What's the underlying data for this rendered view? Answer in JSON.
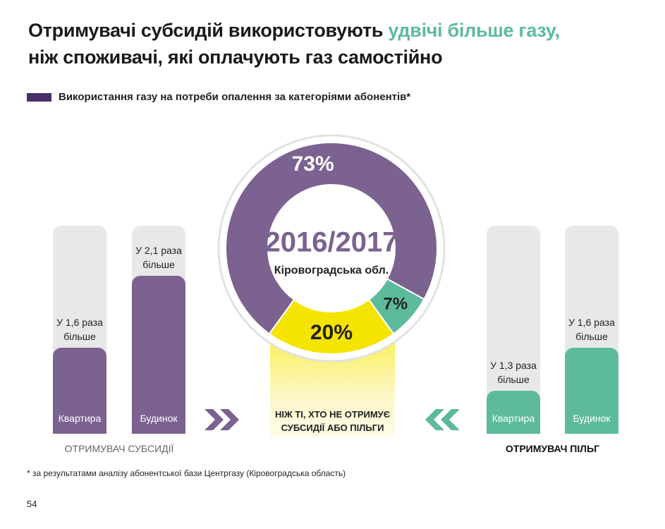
{
  "title": {
    "lead": "Отримувачі субсидій використовують",
    "highlight": "удвічі більше газу,",
    "rest": "ніж споживачі, які оплачують газ самостійно"
  },
  "legend": "Використання газу на потреби опалення за категоріями абонентів*",
  "chart_data": [
    {
      "type": "pie",
      "center_title": "2016/2017",
      "center_subtitle": "Кіровоградська обл.",
      "values": [
        73,
        7,
        20
      ],
      "value_labels": [
        "73%",
        "7%",
        "20%"
      ],
      "colors": [
        "#7b6290",
        "#5dba9d",
        "#f5e400"
      ]
    },
    {
      "type": "bar",
      "title": "ОТРИМУВАЧ СУБСИДІЇ",
      "categories": [
        "Квартира",
        "Будинок"
      ],
      "values": [
        1.6,
        2.1
      ],
      "value_labels": [
        "У 1,6 раза більше",
        "У 2,1 раза більше"
      ],
      "color": "#7b6290",
      "ylim": [
        1,
        2.45
      ]
    },
    {
      "type": "bar",
      "title": "ОТРИМУВАЧ ПІЛЬГ",
      "categories": [
        "Квартира",
        "Будинок"
      ],
      "values": [
        1.3,
        1.6
      ],
      "value_labels": [
        "У 1,3 раза більше",
        "У 1,6 раза більше"
      ],
      "color": "#5dba9d",
      "ylim": [
        1,
        2.45
      ]
    }
  ],
  "comparison_note": "НІЖ ТІ, ХТО НЕ ОТРИМУЄ СУБСИДІЇ АБО ПІЛЬГИ",
  "footnote": "* за результатами аналізу абонентської бази Центргазу (Кіровоградська область)",
  "page_number": "54"
}
